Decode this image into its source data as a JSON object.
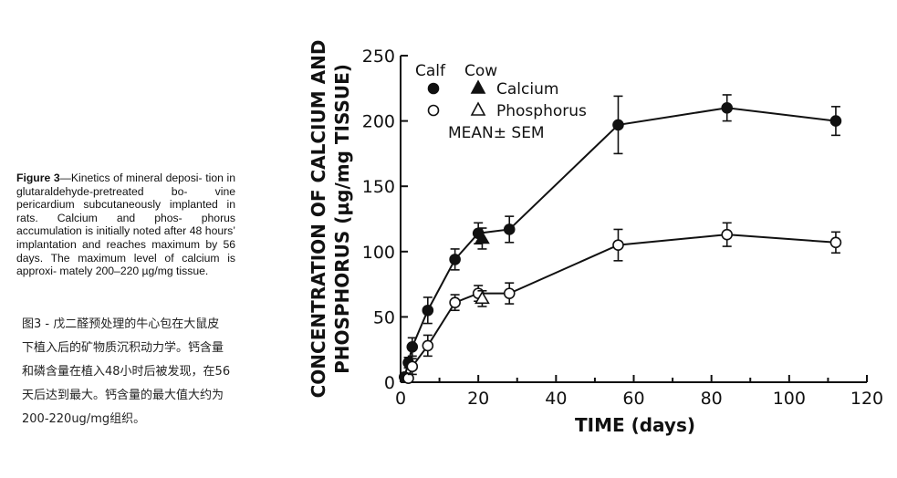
{
  "caption_en": {
    "label": "Figure 3",
    "lines": [
      "—Kinetics of mineral deposi-",
      "tion in glutaraldehyde-pretreated bo-",
      "vine pericardium subcutaneously",
      "implanted in rats. Calcium and phos-",
      "phorus accumulation is initially noted",
      "after 48 hours’ implantation and",
      "reaches maximum by 56 days. The",
      "maximum level of calcium is approxi-",
      "mately 200–220 µg/mg tissue."
    ]
  },
  "caption_zh": {
    "lines": [
      "图3 - 戊二醛预处理的牛心包在大鼠皮",
      "下植入后的矿物质沉积动力学。钙含量",
      "和磷含量在植入48小时后被发现，在56",
      "天后达到最大。钙含量的最大值大约为",
      "200-220ug/mg组织。"
    ]
  },
  "chart_data": {
    "type": "line",
    "xlabel": "TIME (days)",
    "ylabel_lines": [
      "CONCENTRATION OF CALCIUM AND",
      "PHOSPHORUS (µg/mg TISSUE)"
    ],
    "xlim": [
      0,
      120
    ],
    "ylim": [
      0,
      250
    ],
    "x_ticks": [
      0,
      20,
      40,
      60,
      80,
      100,
      120
    ],
    "y_ticks": [
      0,
      50,
      100,
      150,
      200,
      250
    ],
    "legend": {
      "col_calf": "Calf",
      "col_cow": "Cow",
      "row_calcium": "Calcium",
      "row_phosphorus": "Phosphorus",
      "note": "MEAN± SEM"
    },
    "series": [
      {
        "name": "Calcium",
        "animal": "Calf",
        "marker": "filled-circle",
        "connected": true,
        "x": [
          1,
          2,
          3,
          7,
          14,
          20,
          28,
          56,
          84,
          112
        ],
        "y": [
          4,
          15,
          27,
          55,
          94,
          114,
          117,
          197,
          210,
          200
        ],
        "err": [
          2,
          4,
          7,
          10,
          8,
          8,
          10,
          22,
          10,
          11
        ]
      },
      {
        "name": "Phosphorus",
        "animal": "Calf",
        "marker": "open-circle",
        "connected": true,
        "x": [
          2,
          3,
          7,
          14,
          20,
          28,
          56,
          84,
          112
        ],
        "y": [
          3,
          12,
          28,
          61,
          68,
          68,
          105,
          113,
          107
        ],
        "err": [
          3,
          6,
          8,
          6,
          6,
          8,
          12,
          9,
          8
        ]
      },
      {
        "name": "Calcium",
        "animal": "Cow",
        "marker": "filled-triangle",
        "connected": false,
        "x": [
          21
        ],
        "y": [
          110
        ],
        "err": [
          8
        ]
      },
      {
        "name": "Phosphorus",
        "animal": "Cow",
        "marker": "open-triangle",
        "connected": false,
        "x": [
          21
        ],
        "y": [
          64
        ],
        "err": [
          6
        ]
      }
    ]
  }
}
